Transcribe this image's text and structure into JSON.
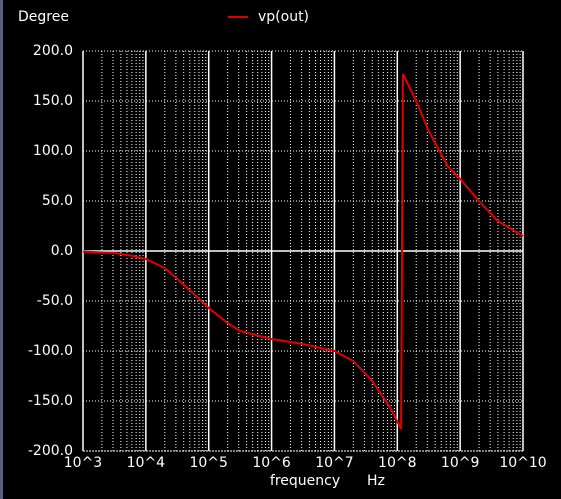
{
  "chart_data": {
    "type": "line",
    "ylabel": "Degree",
    "xlabel": "frequency",
    "xunit": "Hz",
    "xscale": "log",
    "grid": true,
    "x": [
      1000,
      3162,
      6310,
      10000,
      19953,
      31623,
      63096,
      100000,
      199526,
      316228,
      1000000,
      3162278,
      10000000,
      19952623,
      39810717,
      79432823,
      114815362,
      123026877,
      199526231,
      316227766,
      630957344,
      1000000000,
      1995262315,
      3981071706,
      10000000000
    ],
    "series": [
      {
        "name": "vp(out)",
        "color": "#e00000",
        "values": [
          -0.5,
          -2,
          -5,
          -8,
          -17,
          -28,
          -45,
          -57,
          -72,
          -80,
          -88,
          -93,
          -100,
          -110,
          -130,
          -158,
          -178,
          177,
          150,
          120,
          85,
          72,
          50,
          30,
          15
        ]
      }
    ],
    "xlim": [
      1000,
      10000000000
    ],
    "xticks": [
      {
        "value": 1000,
        "label": "10^3"
      },
      {
        "value": 10000,
        "label": "10^4"
      },
      {
        "value": 100000,
        "label": "10^5"
      },
      {
        "value": 1000000,
        "label": "10^6"
      },
      {
        "value": 10000000,
        "label": "10^7"
      },
      {
        "value": 100000000,
        "label": "10^8"
      },
      {
        "value": 1000000000,
        "label": "10^9"
      },
      {
        "value": 10000000000,
        "label": "10^10"
      }
    ],
    "ylim": [
      -200,
      200
    ],
    "yticks": [
      {
        "value": -200,
        "label": "-200.0"
      },
      {
        "value": -150,
        "label": "-150.0"
      },
      {
        "value": -100,
        "label": "-100.0"
      },
      {
        "value": -50,
        "label": "-50.0"
      },
      {
        "value": 0,
        "label": "0.0"
      },
      {
        "value": 50,
        "label": "50.0"
      },
      {
        "value": 100,
        "label": "100.0"
      },
      {
        "value": 150,
        "label": "150.0"
      },
      {
        "value": 200,
        "label": "200.0"
      }
    ]
  }
}
